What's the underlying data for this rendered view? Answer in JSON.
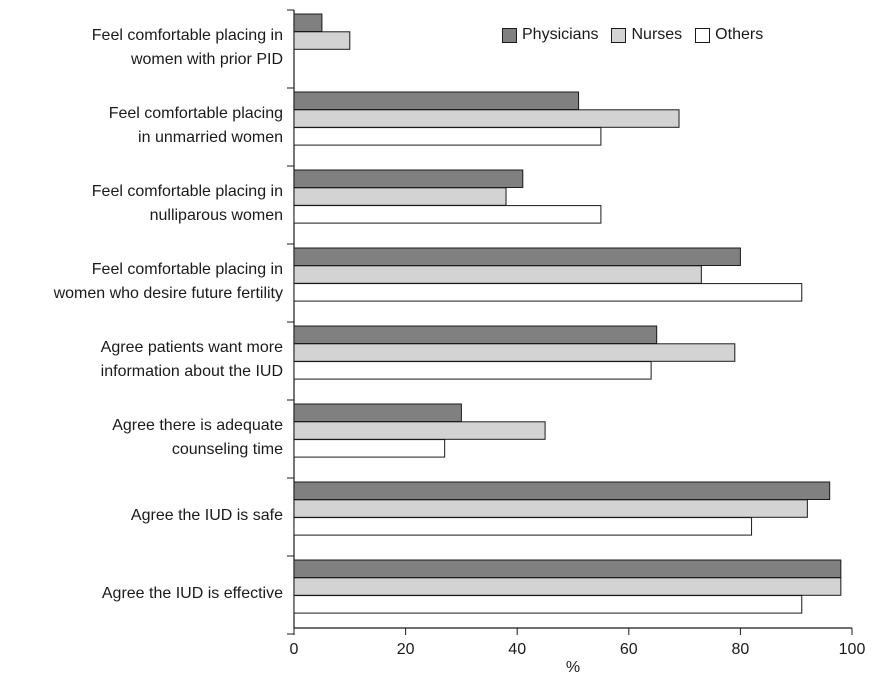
{
  "chart_data": {
    "type": "bar",
    "orientation": "horizontal",
    "categories": [
      [
        "Feel comfortable placing in",
        "women with prior PID"
      ],
      [
        "Feel comfortable placing",
        "in unmarried women"
      ],
      [
        "Feel comfortable placing in",
        "nulliparous women"
      ],
      [
        "Feel comfortable placing in",
        "women who desire future fertility"
      ],
      [
        "Agree patients want more",
        "information about the IUD"
      ],
      [
        "Agree there is adequate",
        "counseling time"
      ],
      [
        "Agree the IUD is safe"
      ],
      [
        "Agree the IUD is effective"
      ]
    ],
    "series": [
      {
        "name": "Physicians",
        "color": "#808080",
        "values": [
          5,
          51,
          41,
          80,
          65,
          30,
          96,
          98
        ]
      },
      {
        "name": "Nurses",
        "color": "#d3d3d3",
        "values": [
          10,
          69,
          38,
          73,
          79,
          45,
          92,
          98
        ]
      },
      {
        "name": "Others",
        "color": "#ffffff",
        "values": [
          null,
          55,
          55,
          91,
          64,
          27,
          82,
          91
        ]
      }
    ],
    "xlim": [
      0,
      100
    ],
    "xticks": [
      0,
      20,
      40,
      60,
      80,
      100
    ],
    "xlabel": "%",
    "ylabel": "",
    "title": "",
    "legend_position": "top-right",
    "grid": false
  }
}
